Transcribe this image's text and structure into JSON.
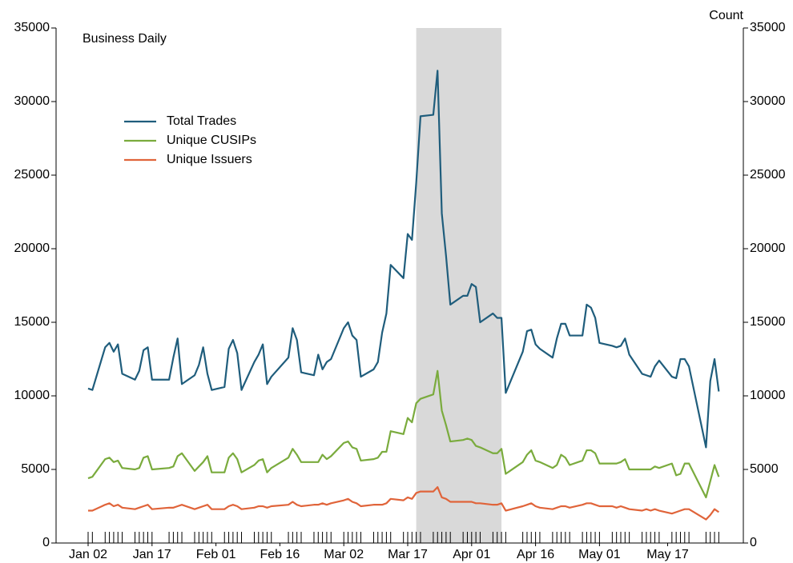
{
  "chart_data": {
    "type": "line",
    "annotation": "Business Daily",
    "y2_label": "Count",
    "x": [
      "01-02",
      "01-03",
      "01-06",
      "01-07",
      "01-08",
      "01-09",
      "01-10",
      "01-13",
      "01-14",
      "01-15",
      "01-16",
      "01-17",
      "01-21",
      "01-22",
      "01-23",
      "01-24",
      "01-27",
      "01-28",
      "01-29",
      "01-30",
      "01-31",
      "02-03",
      "02-04",
      "02-05",
      "02-06",
      "02-07",
      "02-10",
      "02-11",
      "02-12",
      "02-13",
      "02-14",
      "02-18",
      "02-19",
      "02-20",
      "02-21",
      "02-24",
      "02-25",
      "02-26",
      "02-27",
      "02-28",
      "03-02",
      "03-03",
      "03-04",
      "03-05",
      "03-06",
      "03-09",
      "03-10",
      "03-11",
      "03-12",
      "03-13",
      "03-16",
      "03-17",
      "03-18",
      "03-19",
      "03-20",
      "03-23",
      "03-24",
      "03-25",
      "03-26",
      "03-27",
      "03-30",
      "03-31",
      "04-01",
      "04-02",
      "04-03",
      "04-06",
      "04-07",
      "04-08",
      "04-09",
      "04-13",
      "04-14",
      "04-15",
      "04-16",
      "04-17",
      "04-20",
      "04-21",
      "04-22",
      "04-23",
      "04-24",
      "04-27",
      "04-28",
      "04-29",
      "04-30",
      "05-01",
      "05-04",
      "05-05",
      "05-06",
      "05-07",
      "05-08",
      "05-11",
      "05-12",
      "05-13",
      "05-14",
      "05-15",
      "05-18",
      "05-19",
      "05-20",
      "05-21",
      "05-22",
      "05-26",
      "05-27",
      "05-28",
      "05-29"
    ],
    "xticks": [
      {
        "value": "01-02",
        "label": "Jan 02"
      },
      {
        "value": "01-17",
        "label": "Jan 17"
      },
      {
        "value": "02-01",
        "label": "Feb 01"
      },
      {
        "value": "02-16",
        "label": "Feb 16"
      },
      {
        "value": "03-02",
        "label": "Mar 02"
      },
      {
        "value": "03-17",
        "label": "Mar 17"
      },
      {
        "value": "04-01",
        "label": "Apr 01"
      },
      {
        "value": "04-16",
        "label": "Apr 16"
      },
      {
        "value": "05-01",
        "label": "May 01"
      },
      {
        "value": "05-17",
        "label": "May 17"
      }
    ],
    "highlight": [
      "03-19",
      "04-08"
    ],
    "highlight_color": "#d9d9d9",
    "ylim": [
      0,
      35000
    ],
    "yticks": [
      0,
      5000,
      10000,
      15000,
      20000,
      25000,
      30000,
      35000
    ],
    "y2lim": [
      0,
      35000
    ],
    "y2ticks": [
      0,
      5000,
      10000,
      15000,
      20000,
      25000,
      30000,
      35000
    ],
    "legend": "upper left",
    "series": [
      {
        "name": "Total Trades",
        "color": "#1f5d7c",
        "values": [
          10500,
          10400,
          13300,
          13600,
          13000,
          13500,
          11500,
          11100,
          11700,
          13100,
          13300,
          11100,
          11100,
          12600,
          13900,
          10800,
          11400,
          12100,
          13300,
          11500,
          10400,
          10600,
          13200,
          13800,
          12900,
          10400,
          12300,
          12800,
          13500,
          10800,
          11300,
          12600,
          14600,
          13800,
          11600,
          11400,
          12800,
          11800,
          12300,
          12500,
          14600,
          15000,
          14100,
          13800,
          11300,
          11800,
          12300,
          14300,
          15600,
          18900,
          18000,
          21000,
          20600,
          24500,
          29000,
          29100,
          32100,
          22400,
          19500,
          16200,
          16800,
          16800,
          17600,
          17400,
          15000,
          15600,
          15300,
          15300,
          10200,
          13000,
          14400,
          14500,
          13500,
          13200,
          12600,
          13900,
          14900,
          14900,
          14100,
          14100,
          16200,
          16000,
          15300,
          13600,
          13400,
          13300,
          13400,
          13900,
          12800,
          11500,
          11400,
          11300,
          12000,
          12400,
          11300,
          11200,
          12500,
          12500,
          12000,
          6500,
          11000,
          12500,
          10300
        ]
      },
      {
        "name": "Unique CUSIPs",
        "color": "#7aab3d",
        "values": [
          4400,
          4500,
          5700,
          5800,
          5500,
          5600,
          5100,
          5000,
          5100,
          5800,
          5900,
          5000,
          5100,
          5200,
          5900,
          6100,
          4900,
          5200,
          5500,
          5900,
          4800,
          4800,
          5800,
          6100,
          5700,
          4800,
          5300,
          5600,
          5700,
          4800,
          5100,
          5800,
          6400,
          6000,
          5500,
          5500,
          5500,
          6000,
          5700,
          5900,
          6800,
          6900,
          6500,
          6400,
          5600,
          5700,
          5800,
          6200,
          6200,
          7600,
          7400,
          8500,
          8200,
          9500,
          9800,
          10100,
          11700,
          9000,
          8000,
          6900,
          7000,
          7100,
          7000,
          6600,
          6500,
          6100,
          6100,
          6400,
          4700,
          5500,
          6000,
          6300,
          5600,
          5500,
          5100,
          5300,
          6000,
          5800,
          5300,
          5600,
          6300,
          6300,
          6100,
          5400,
          5400,
          5400,
          5500,
          5700,
          5000,
          5000,
          5000,
          5000,
          5200,
          5100,
          5400,
          4600,
          4700,
          5400,
          5400,
          3100,
          4200,
          5300,
          4500
        ]
      },
      {
        "name": "Unique Issuers",
        "color": "#e0643a",
        "values": [
          2200,
          2200,
          2600,
          2700,
          2500,
          2600,
          2400,
          2300,
          2400,
          2500,
          2600,
          2300,
          2400,
          2400,
          2500,
          2600,
          2300,
          2400,
          2500,
          2600,
          2300,
          2300,
          2500,
          2600,
          2500,
          2300,
          2400,
          2500,
          2500,
          2400,
          2500,
          2600,
          2800,
          2600,
          2500,
          2600,
          2600,
          2700,
          2600,
          2700,
          2900,
          3000,
          2800,
          2700,
          2500,
          2600,
          2600,
          2600,
          2700,
          3000,
          2900,
          3100,
          3000,
          3400,
          3500,
          3500,
          3800,
          3100,
          3000,
          2800,
          2800,
          2800,
          2800,
          2700,
          2700,
          2600,
          2600,
          2700,
          2200,
          2500,
          2600,
          2700,
          2500,
          2400,
          2300,
          2400,
          2500,
          2500,
          2400,
          2600,
          2700,
          2700,
          2600,
          2500,
          2500,
          2400,
          2500,
          2400,
          2300,
          2200,
          2300,
          2200,
          2300,
          2200,
          2000,
          2100,
          2200,
          2300,
          2300,
          1600,
          1900,
          2300,
          2100
        ]
      }
    ]
  }
}
